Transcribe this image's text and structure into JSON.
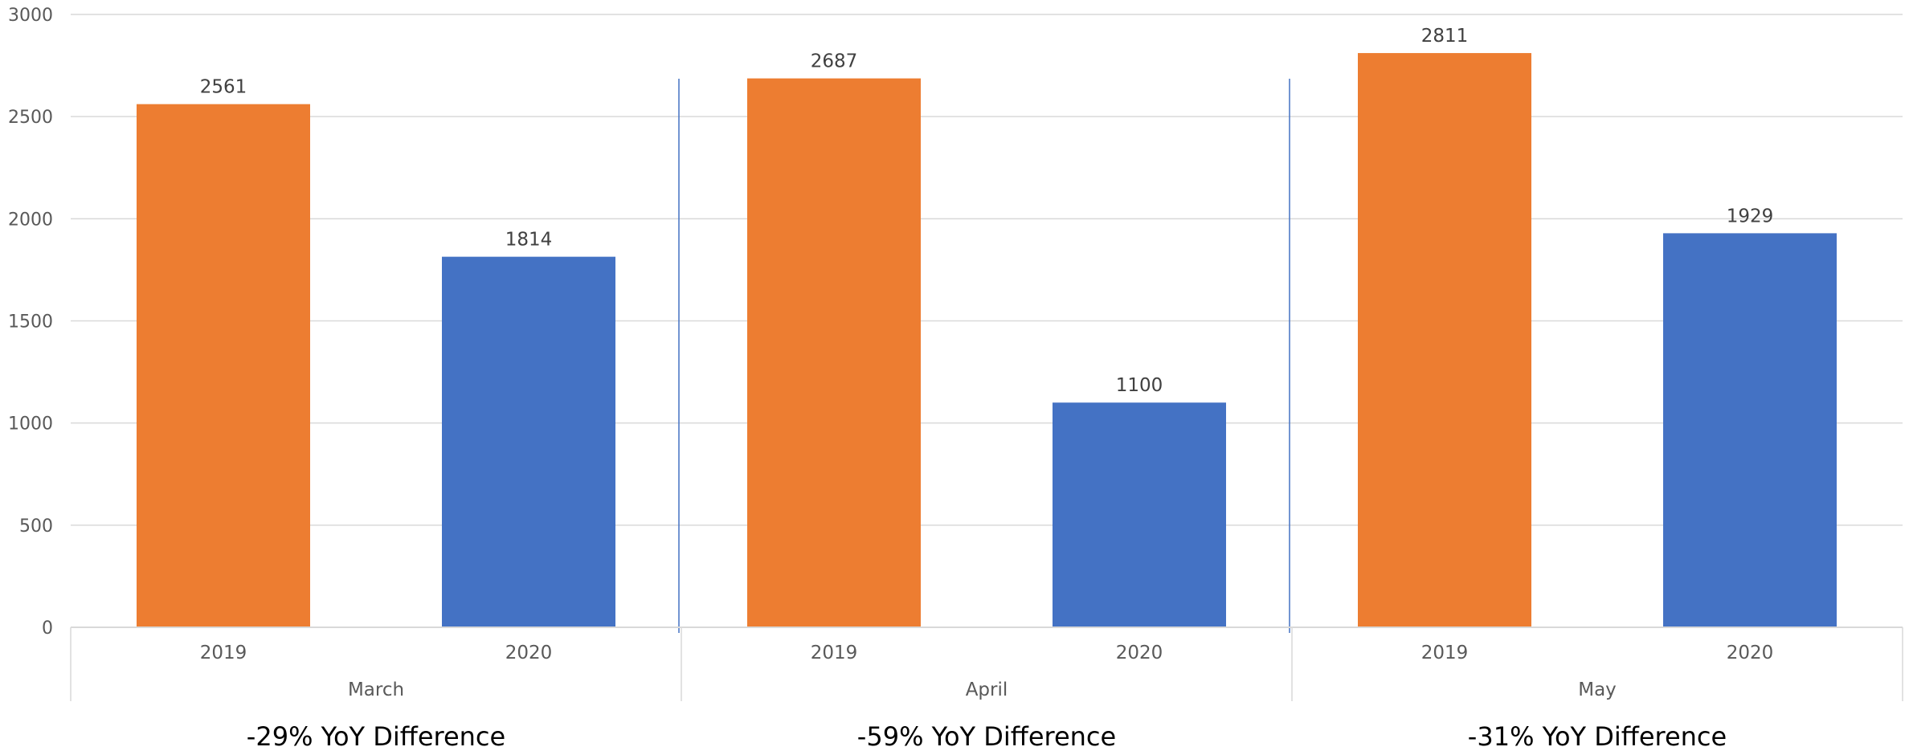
{
  "chart_data": {
    "type": "bar",
    "title": "",
    "xlabel": "",
    "ylabel": "",
    "ylim": [
      0,
      3000
    ],
    "yticks": [
      0,
      500,
      1000,
      1500,
      2000,
      2500,
      3000
    ],
    "grid": true,
    "legend": "none",
    "groups": [
      {
        "name": "March",
        "annotation": "-29% YoY Difference",
        "bars": [
          {
            "category": "2019",
            "value": 2561,
            "color": "#ED7D31"
          },
          {
            "category": "2020",
            "value": 1814,
            "color": "#4472C4"
          }
        ]
      },
      {
        "name": "April",
        "annotation": "-59% YoY Difference",
        "bars": [
          {
            "category": "2019",
            "value": 2687,
            "color": "#ED7D31"
          },
          {
            "category": "2020",
            "value": 1100,
            "color": "#4472C4"
          }
        ]
      },
      {
        "name": "May",
        "annotation": "-31% YoY Difference",
        "bars": [
          {
            "category": "2019",
            "value": 2811,
            "color": "#ED7D31"
          },
          {
            "category": "2020",
            "value": 1929,
            "color": "#4472C4"
          }
        ]
      }
    ],
    "colors": {
      "gridline": "#D9D9D9",
      "axis": "#BFBFBF",
      "separator": "#4472C4"
    }
  }
}
